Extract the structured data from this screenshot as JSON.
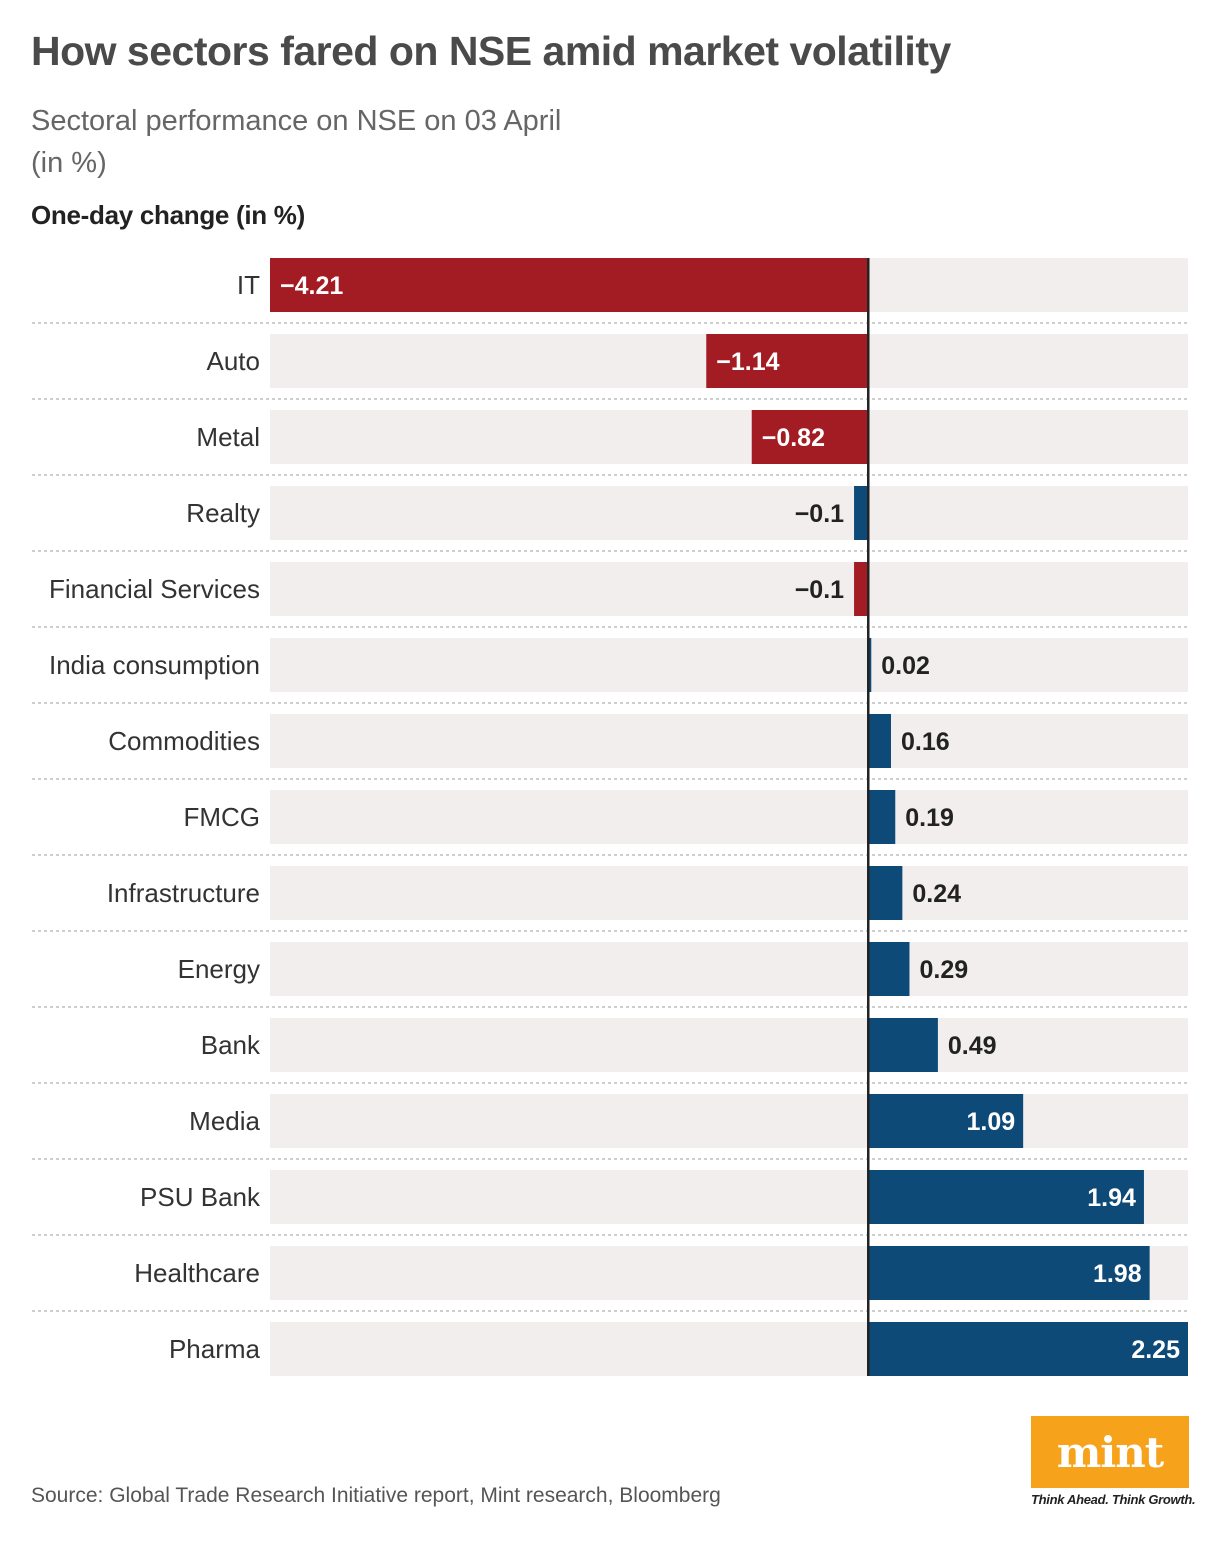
{
  "header": {
    "title": "How sectors fared on NSE amid market volatility",
    "subtitle_line1": "Sectoral performance on NSE on 03 April",
    "subtitle_line2": "(in %)"
  },
  "chart_data": {
    "type": "bar",
    "orientation": "horizontal",
    "title": "How sectors fared on NSE amid market volatility",
    "xlabel": "One-day change (in %)",
    "ylabel": "",
    "xlim": [
      -4.21,
      2.25
    ],
    "categories": [
      "IT",
      "Auto",
      "Metal",
      "Realty",
      "Financial Services",
      "India consumption",
      "Commodities",
      "FMCG",
      "Infrastructure",
      "Energy",
      "Bank",
      "Media",
      "PSU Bank",
      "Healthcare",
      "Pharma"
    ],
    "values": [
      -4.21,
      -1.14,
      -0.82,
      -0.1,
      -0.1,
      0.02,
      0.16,
      0.19,
      0.24,
      0.29,
      0.49,
      1.09,
      1.94,
      1.98,
      2.25
    ],
    "value_labels": [
      "−4.21",
      "−1.14",
      "−0.82",
      "−0.1",
      "−0.1",
      "0.02",
      "0.16",
      "0.19",
      "0.24",
      "0.29",
      "0.49",
      "1.09",
      "1.94",
      "1.98",
      "2.25"
    ],
    "bar_colors": [
      "#a31c23",
      "#a31c23",
      "#a31c23",
      "#0d4a78",
      "#a31c23",
      "#0d4a78",
      "#0d4a78",
      "#0d4a78",
      "#0d4a78",
      "#0d4a78",
      "#0d4a78",
      "#0d4a78",
      "#0d4a78",
      "#0d4a78",
      "#0d4a78"
    ],
    "track_color": "#f1eeed"
  },
  "footer": {
    "source": "Source: Global Trade Research Initiative report, Mint research, Bloomberg",
    "logo_text": "mint",
    "tagline": "Think Ahead. Think Growth.",
    "logo_color": "#f7a21b"
  }
}
